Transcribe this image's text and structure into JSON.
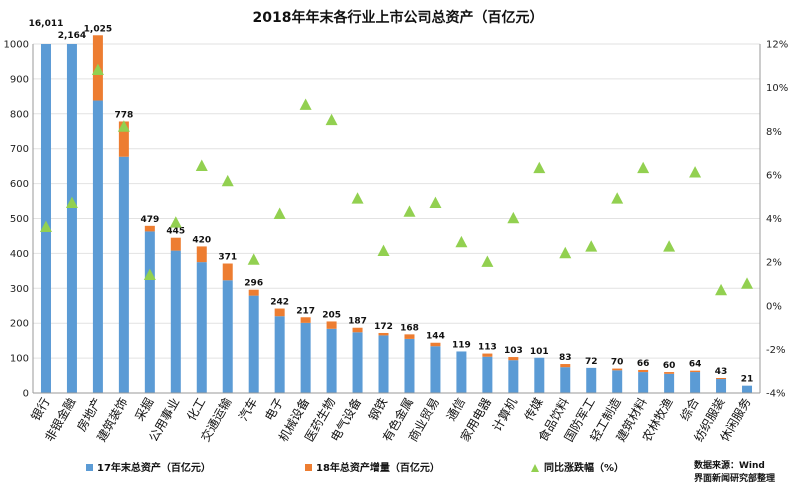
{
  "chart_data": {
    "type": "bar",
    "title": "2018年年末各行业上市公司总资产（百亿元）",
    "categories": [
      "银行",
      "非银金融",
      "房地产",
      "建筑装饰",
      "采掘",
      "公用事业",
      "化工",
      "交通运输",
      "汽车",
      "电子",
      "机械设备",
      "医药生物",
      "电气设备",
      "钢铁",
      "有色金属",
      "商业贸易",
      "通信",
      "家用电器",
      "计算机",
      "传媒",
      "食品饮料",
      "国防军工",
      "轻工制造",
      "建筑材料",
      "农林牧渔",
      "综合",
      "纺织服装",
      "休闲服务"
    ],
    "labels": [
      "16,011",
      "2,164",
      "1,025",
      "778",
      "479",
      "445",
      "420",
      "371",
      "296",
      "242",
      "217",
      "205",
      "187",
      "172",
      "168",
      "144",
      "119",
      "113",
      "103",
      "101",
      "83",
      "72",
      "70",
      "66",
      "60",
      "64",
      "43",
      "21"
    ],
    "series": [
      {
        "name": "17年末总资产（百亿元）",
        "color": "#5B9BD5",
        "values": [
          1000,
          1000,
          838,
          677,
          463,
          408,
          375,
          323,
          279,
          220,
          201,
          184,
          174,
          165,
          155,
          134,
          119,
          104,
          94,
          101,
          74,
          72,
          65,
          60,
          55,
          60,
          40,
          21
        ]
      },
      {
        "name": "18年总资产增量（百亿元）",
        "color": "#ED7D31",
        "values": [
          0,
          0,
          187,
          101,
          16,
          37,
          45,
          48,
          17,
          22,
          16,
          21,
          13,
          7,
          13,
          10,
          0,
          9,
          9,
          0,
          9,
          0,
          5,
          6,
          5,
          4,
          3,
          0
        ]
      },
      {
        "name": "同比涨跌幅（%）",
        "color": "#92D050",
        "axis": "right",
        "values": [
          3.6,
          4.7,
          10.8,
          8.2,
          1.4,
          3.8,
          6.4,
          5.7,
          2.1,
          4.2,
          9.2,
          8.5,
          4.9,
          2.5,
          4.3,
          4.7,
          2.9,
          2.0,
          4.0,
          6.3,
          2.4,
          2.7,
          4.9,
          6.3,
          2.7,
          6.1,
          0.7,
          1.0
        ]
      }
    ],
    "ylim": [
      0,
      1000
    ],
    "yticks": [
      "0",
      "100",
      "200",
      "300",
      "400",
      "500",
      "600",
      "700",
      "800",
      "900",
      "1000"
    ],
    "y2lim": [
      -4,
      12
    ],
    "y2ticks": [
      "-4%",
      "-2%",
      "0%",
      "2%",
      "4%",
      "6%",
      "8%",
      "10%",
      "12%"
    ],
    "top_label": "16,011",
    "legend_position": "bottom"
  },
  "source": {
    "line1": "数据来源：Wind",
    "line2": "界面新闻研究部整理"
  }
}
